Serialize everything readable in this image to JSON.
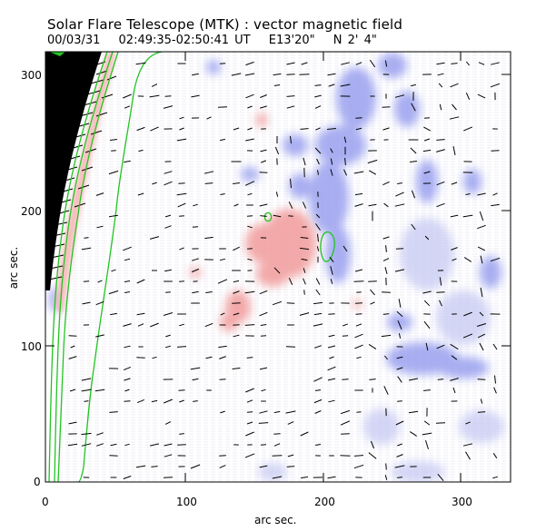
{
  "header": {
    "title": "Solar Flare Telescope (MTK) : vector magnetic field",
    "date": "00/03/31",
    "time_range": "02:49:35-02:50:41 UT",
    "position_lon": "E13'20\"",
    "position_lat": "N 2' 4\""
  },
  "axes": {
    "xlabel": "arc sec.",
    "ylabel": "arc sec.",
    "xlim": [
      0,
      340
    ],
    "ylim": [
      0,
      315
    ],
    "xticks": [
      "0",
      "100",
      "200",
      "300"
    ],
    "yticks": [
      "0",
      "100",
      "200",
      "300"
    ]
  },
  "colors": {
    "positive_polarity": "#f2a0a0",
    "negative_polarity": "#9aa0ef",
    "contour": "#22c422",
    "limb": "#000000",
    "vectors": "#000000"
  }
}
